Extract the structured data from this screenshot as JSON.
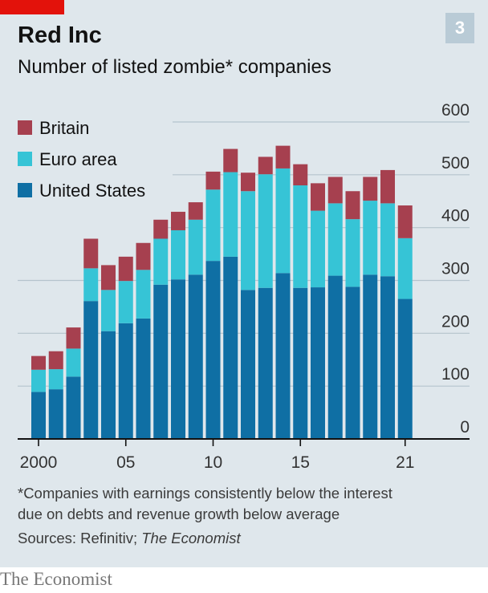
{
  "header": {
    "title": "Red Inc",
    "badge": "3",
    "subtitle": "Number of listed zombie* companies"
  },
  "footer": {
    "note_line1": "*Companies with earnings consistently below the interest",
    "note_line2": "due on debts and revenue growth below average",
    "sources_prefix": "Sources: Refinitiv; ",
    "sources_italic": "The Economist",
    "logo": "The Economist"
  },
  "colors": {
    "background": "#dfe7ec",
    "britain": "#a6404f",
    "euro_area": "#36c4d6",
    "united_states": "#0f6fa4",
    "brand_red": "#e3120b"
  },
  "chart_data": {
    "type": "bar",
    "stacked": true,
    "title": "Number of listed zombie* companies",
    "years": [
      2000,
      2001,
      2002,
      2003,
      2004,
      2005,
      2006,
      2007,
      2008,
      2009,
      2010,
      2011,
      2012,
      2013,
      2014,
      2015,
      2016,
      2017,
      2018,
      2019,
      2020,
      2021
    ],
    "x_tick_labels": [
      {
        "year": 2000,
        "label": "2000"
      },
      {
        "year": 2005,
        "label": "05"
      },
      {
        "year": 2010,
        "label": "10"
      },
      {
        "year": 2015,
        "label": "15"
      },
      {
        "year": 2021,
        "label": "21"
      }
    ],
    "series": [
      {
        "name": "United States",
        "color": "#0f6fa4",
        "values": [
          89,
          94,
          118,
          261,
          204,
          219,
          228,
          292,
          302,
          311,
          337,
          345,
          282,
          286,
          314,
          286,
          287,
          309,
          288,
          311,
          308,
          265
        ]
      },
      {
        "name": "Euro area",
        "color": "#36c4d6",
        "values": [
          42,
          38,
          53,
          62,
          78,
          80,
          92,
          87,
          93,
          104,
          135,
          160,
          187,
          215,
          198,
          194,
          145,
          137,
          128,
          140,
          138,
          115
        ]
      },
      {
        "name": "Britain",
        "color": "#a6404f",
        "values": [
          26,
          34,
          40,
          56,
          47,
          46,
          51,
          36,
          35,
          33,
          34,
          44,
          35,
          33,
          43,
          40,
          52,
          50,
          53,
          45,
          63,
          62
        ]
      }
    ],
    "legend_order": [
      "Britain",
      "Euro area",
      "United States"
    ],
    "legend_position": "top-left",
    "ylim": [
      0,
      600
    ],
    "y_ticks": [
      0,
      100,
      200,
      300,
      400,
      500,
      600
    ],
    "y_axis_side": "right",
    "grid": true
  }
}
